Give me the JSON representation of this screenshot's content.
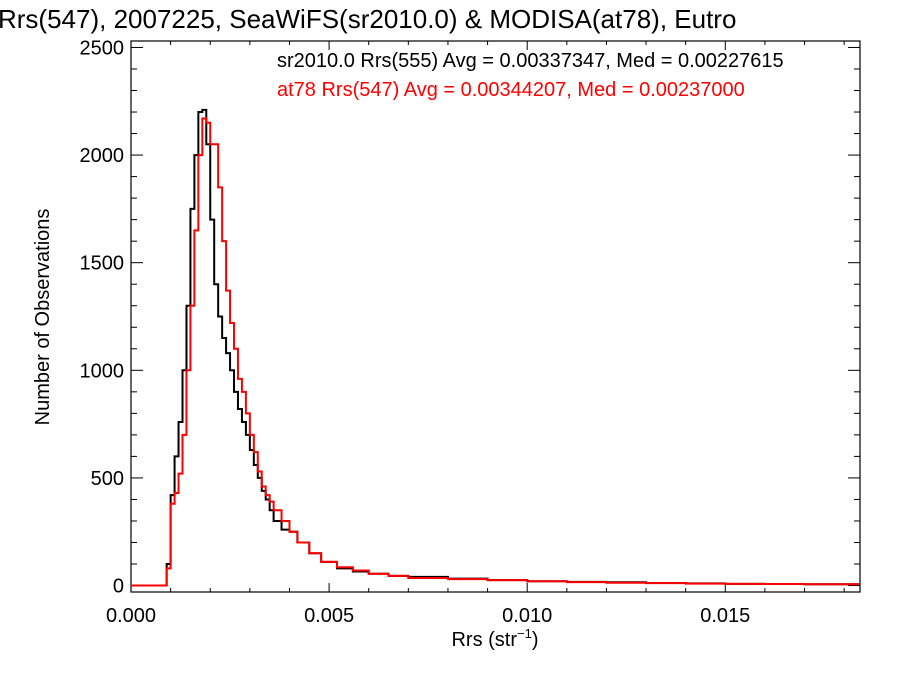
{
  "chart_data": {
    "type": "line",
    "title": "Rrs(547), 2007225, SeaWiFS(sr2010.0) & MODISA(at78), Eutro",
    "xlabel": "Rrs (str",
    "xlabel_sup": "−1",
    "xlabel_close": ")",
    "ylabel": "Number of Observations",
    "xlim": [
      0.0,
      0.0184
    ],
    "ylim": [
      -30,
      2530
    ],
    "xticks": [
      0.0,
      0.005,
      0.01,
      0.015
    ],
    "xtick_labels": [
      "0.000",
      "0.005",
      "0.010",
      "0.015"
    ],
    "yticks": [
      0,
      500,
      1000,
      1500,
      2000,
      2500
    ],
    "ytick_labels": [
      "0",
      "500",
      "1000",
      "1500",
      "2000",
      "2500"
    ],
    "grid": false,
    "legend_placement": "top-right",
    "series": [
      {
        "name": "sr2010.0 Rrs(555) Avg = 0.00337347, Med = 0.00227615",
        "color": "#000000",
        "x": [
          0.0,
          0.0008,
          0.0009,
          0.001,
          0.0011,
          0.0012,
          0.0013,
          0.0014,
          0.0015,
          0.0016,
          0.0017,
          0.0018,
          0.0019,
          0.002,
          0.0021,
          0.0022,
          0.0023,
          0.0024,
          0.0025,
          0.0026,
          0.0027,
          0.0028,
          0.0029,
          0.003,
          0.0031,
          0.0032,
          0.0033,
          0.0034,
          0.0035,
          0.0036,
          0.0038,
          0.004,
          0.0042,
          0.0045,
          0.0048,
          0.0052,
          0.0056,
          0.006,
          0.0065,
          0.007,
          0.008,
          0.009,
          0.01,
          0.011,
          0.012,
          0.013,
          0.014,
          0.015,
          0.016,
          0.017,
          0.0184
        ],
        "y": [
          0,
          0,
          100,
          420,
          600,
          760,
          1000,
          1300,
          1750,
          2000,
          2200,
          2210,
          2050,
          1700,
          1400,
          1250,
          1150,
          1080,
          1000,
          900,
          820,
          760,
          700,
          630,
          560,
          500,
          440,
          400,
          350,
          300,
          260,
          250,
          200,
          150,
          110,
          80,
          65,
          55,
          45,
          40,
          32,
          25,
          20,
          17,
          15,
          12,
          10,
          8,
          7,
          6,
          5
        ]
      },
      {
        "name": "at78 Rrs(547) Avg = 0.00344207, Med = 0.00237000",
        "color": "#ff0000",
        "x": [
          0.0,
          0.0008,
          0.0009,
          0.001,
          0.0011,
          0.0012,
          0.0013,
          0.0014,
          0.0015,
          0.0016,
          0.0017,
          0.0018,
          0.0019,
          0.002,
          0.0021,
          0.0022,
          0.0023,
          0.0024,
          0.0025,
          0.0026,
          0.0027,
          0.0028,
          0.0029,
          0.003,
          0.0031,
          0.0032,
          0.0033,
          0.0034,
          0.0035,
          0.0036,
          0.0038,
          0.004,
          0.0042,
          0.0045,
          0.0048,
          0.0052,
          0.0056,
          0.006,
          0.0065,
          0.007,
          0.008,
          0.009,
          0.01,
          0.011,
          0.012,
          0.013,
          0.014,
          0.015,
          0.016,
          0.017,
          0.0184
        ],
        "y": [
          0,
          0,
          80,
          380,
          430,
          520,
          700,
          1000,
          1300,
          1650,
          2000,
          2170,
          2150,
          2050,
          2050,
          1850,
          1600,
          1370,
          1220,
          1100,
          960,
          900,
          800,
          700,
          620,
          530,
          460,
          420,
          390,
          350,
          300,
          250,
          200,
          150,
          110,
          85,
          70,
          55,
          45,
          35,
          30,
          25,
          20,
          16,
          13,
          11,
          9,
          8,
          7,
          6,
          5
        ]
      }
    ]
  }
}
